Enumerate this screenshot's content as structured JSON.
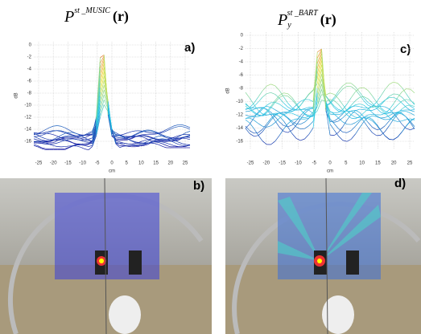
{
  "panels": [
    {
      "label": "a)",
      "title": {
        "base": "P",
        "sup": "st _MUSIC",
        "arg": "(r)"
      },
      "yticks": [
        0,
        -2,
        -4,
        -6,
        -8,
        -10,
        -12,
        -14,
        -16
      ],
      "xticks": [
        -25,
        -20,
        -15,
        -10,
        -5,
        0,
        5,
        10,
        15,
        20,
        25
      ],
      "xlabel": "cm",
      "ylabel": "dB"
    },
    {
      "label": "c)",
      "title": {
        "base": "P",
        "sub": "y",
        "sup": "st _BART",
        "arg": "(r)"
      },
      "yticks": [
        0,
        -2,
        -4,
        -6,
        -8,
        -10,
        -12,
        -14,
        -16
      ],
      "xticks": [
        -25,
        -20,
        -15,
        -10,
        -5,
        0,
        5,
        10,
        15,
        20,
        25
      ],
      "xlabel": "cm",
      "ylabel": "dB"
    },
    {
      "label": "b)"
    },
    {
      "label": "d)"
    }
  ]
}
